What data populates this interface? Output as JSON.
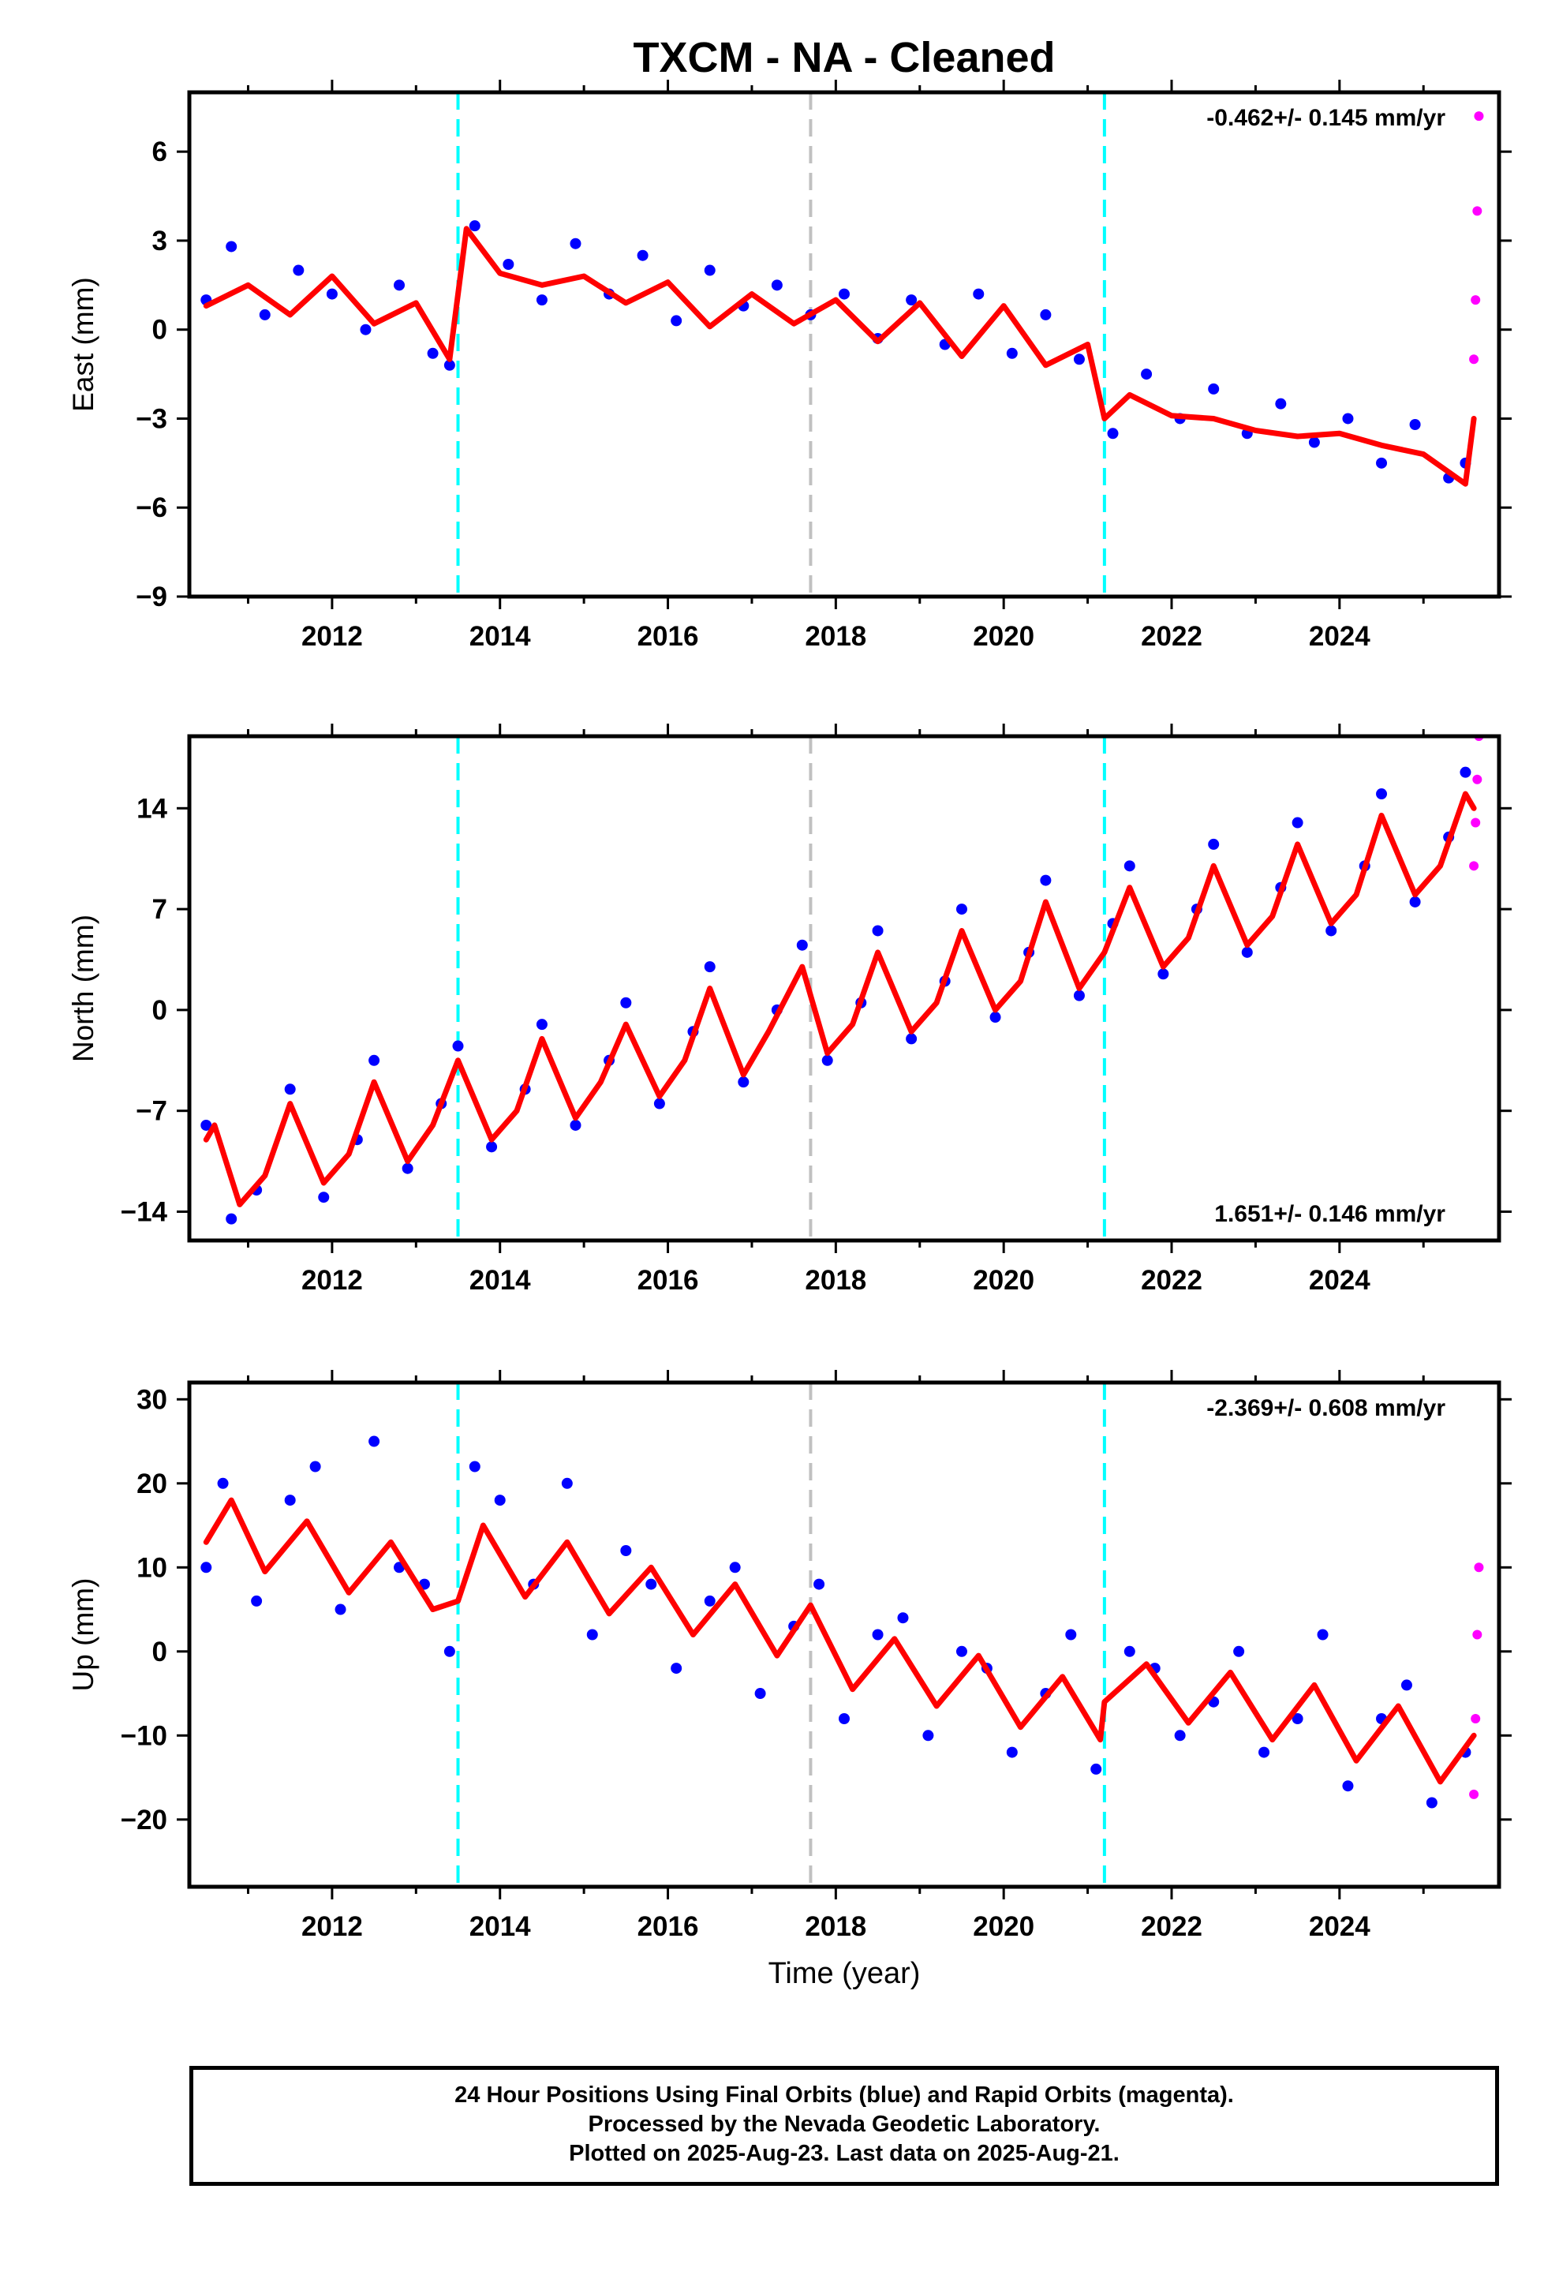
{
  "title": "TXCM  - NA - Cleaned",
  "footer": {
    "line1": "24 Hour Positions Using Final Orbits (blue) and Rapid Orbits (magenta).",
    "line2": "Processed by the Nevada Geodetic Laboratory.",
    "line3": "Plotted on 2025-Aug-23. Last data on 2025-Aug-21."
  },
  "colors": {
    "final": "#0000ff",
    "rapid": "#ff00ff",
    "model": "#ff0000",
    "equipment_change": "#00ffff",
    "earthquake": "#c0c0c0"
  },
  "chart_data": [
    {
      "type": "scatter",
      "component": "East",
      "ylabel": "East (mm)",
      "xlabel": "",
      "xlim": [
        2010.3,
        2025.9
      ],
      "ylim": [
        -9,
        8
      ],
      "yticks": [
        -9,
        -6,
        -3,
        0,
        3,
        6
      ],
      "ytick_labels": [
        "−9",
        "−6",
        "−3",
        "0",
        "3",
        "6"
      ],
      "xticks": [
        2012,
        2014,
        2016,
        2018,
        2020,
        2022,
        2024
      ],
      "rate_text": "-0.462+/- 0.145 mm/yr",
      "rate_position": "top-right",
      "vlines": [
        {
          "x": 2013.5,
          "style": "equipment_change"
        },
        {
          "x": 2017.7,
          "style": "earthquake"
        },
        {
          "x": 2021.2,
          "style": "equipment_change"
        }
      ],
      "model_fit": {
        "x": [
          2010.5,
          2011.0,
          2011.5,
          2012.0,
          2012.5,
          2013.0,
          2013.4,
          2013.6,
          2014.0,
          2014.5,
          2015.0,
          2015.5,
          2016.0,
          2016.5,
          2017.0,
          2017.5,
          2018.0,
          2018.5,
          2019.0,
          2019.5,
          2020.0,
          2020.5,
          2021.0,
          2021.2,
          2021.5,
          2022.0,
          2022.5,
          2023.0,
          2023.5,
          2024.0,
          2024.5,
          2025.0,
          2025.5,
          2025.6
        ],
        "y": [
          0.8,
          1.5,
          0.5,
          1.8,
          0.2,
          0.9,
          -1.0,
          3.4,
          1.9,
          1.5,
          1.8,
          0.9,
          1.6,
          0.1,
          1.2,
          0.2,
          1.0,
          -0.4,
          0.9,
          -0.9,
          0.8,
          -1.2,
          -0.5,
          -3.0,
          -2.2,
          -2.9,
          -3.0,
          -3.4,
          -3.6,
          -3.5,
          -3.9,
          -4.2,
          -5.2,
          -3.0
        ]
      },
      "final_orbits": {
        "x": [
          2010.5,
          2010.8,
          2011.2,
          2011.6,
          2012.0,
          2012.4,
          2012.8,
          2013.2,
          2013.4,
          2013.7,
          2014.1,
          2014.5,
          2014.9,
          2015.3,
          2015.7,
          2016.1,
          2016.5,
          2016.9,
          2017.3,
          2017.7,
          2018.1,
          2018.5,
          2018.9,
          2019.3,
          2019.7,
          2020.1,
          2020.5,
          2020.9,
          2021.3,
          2021.7,
          2022.1,
          2022.5,
          2022.9,
          2023.3,
          2023.7,
          2024.1,
          2024.5,
          2024.9,
          2025.3,
          2025.5
        ],
        "y": [
          1.0,
          2.8,
          0.5,
          2.0,
          1.2,
          0.0,
          1.5,
          -0.8,
          -1.2,
          3.5,
          2.2,
          1.0,
          2.9,
          1.2,
          2.5,
          0.3,
          2.0,
          0.8,
          1.5,
          0.5,
          1.2,
          -0.3,
          1.0,
          -0.5,
          1.2,
          -0.8,
          0.5,
          -1.0,
          -3.5,
          -1.5,
          -3.0,
          -2.0,
          -3.5,
          -2.5,
          -3.8,
          -3.0,
          -4.5,
          -3.2,
          -5.0,
          -4.5
        ]
      },
      "rapid_orbits": {
        "x": [
          2025.6,
          2025.62,
          2025.64,
          2025.66
        ],
        "y": [
          -1.0,
          1.0,
          4.0,
          7.2
        ]
      }
    },
    {
      "type": "scatter",
      "component": "North",
      "ylabel": "North (mm)",
      "xlabel": "",
      "xlim": [
        2010.3,
        2025.9
      ],
      "ylim": [
        -16,
        19
      ],
      "yticks": [
        -14,
        -7,
        0,
        7,
        14
      ],
      "ytick_labels": [
        "−14",
        "−7",
        "0",
        "7",
        "14"
      ],
      "xticks": [
        2012,
        2014,
        2016,
        2018,
        2020,
        2022,
        2024
      ],
      "rate_text": "1.651+/- 0.146 mm/yr",
      "rate_position": "bottom-right",
      "vlines": [
        {
          "x": 2013.5,
          "style": "equipment_change"
        },
        {
          "x": 2017.7,
          "style": "earthquake"
        },
        {
          "x": 2021.2,
          "style": "equipment_change"
        }
      ],
      "model_fit": {
        "x": [
          2010.5,
          2010.6,
          2010.9,
          2011.2,
          2011.5,
          2011.9,
          2012.2,
          2012.5,
          2012.9,
          2013.2,
          2013.5,
          2013.9,
          2014.2,
          2014.5,
          2014.9,
          2015.2,
          2015.5,
          2015.9,
          2016.2,
          2016.5,
          2016.9,
          2017.2,
          2017.6,
          2017.9,
          2018.2,
          2018.5,
          2018.9,
          2019.2,
          2019.5,
          2019.9,
          2020.2,
          2020.5,
          2020.9,
          2021.2,
          2021.5,
          2021.9,
          2022.2,
          2022.5,
          2022.9,
          2023.2,
          2023.5,
          2023.9,
          2024.2,
          2024.5,
          2024.9,
          2025.2,
          2025.5,
          2025.6
        ],
        "y": [
          -9.0,
          -8.0,
          -13.5,
          -11.5,
          -6.5,
          -12.0,
          -10.0,
          -5.0,
          -10.5,
          -8.0,
          -3.5,
          -9.0,
          -7.0,
          -2.0,
          -7.5,
          -5.0,
          -1.0,
          -6.0,
          -3.5,
          1.5,
          -4.5,
          -1.5,
          3.0,
          -3.0,
          -1.0,
          4.0,
          -1.5,
          0.5,
          5.5,
          0.0,
          2.0,
          7.5,
          1.5,
          4.0,
          8.5,
          3.0,
          5.0,
          10.0,
          4.5,
          6.5,
          11.5,
          6.0,
          8.0,
          13.5,
          8.0,
          10.0,
          15.0,
          14.0
        ]
      },
      "final_orbits": {
        "x": [
          2010.5,
          2010.8,
          2011.1,
          2011.5,
          2011.9,
          2012.3,
          2012.5,
          2012.9,
          2013.3,
          2013.5,
          2013.9,
          2014.3,
          2014.5,
          2014.9,
          2015.3,
          2015.5,
          2015.9,
          2016.3,
          2016.5,
          2016.9,
          2017.3,
          2017.6,
          2017.9,
          2018.3,
          2018.5,
          2018.9,
          2019.3,
          2019.5,
          2019.9,
          2020.3,
          2020.5,
          2020.9,
          2021.3,
          2021.5,
          2021.9,
          2022.3,
          2022.5,
          2022.9,
          2023.3,
          2023.5,
          2023.9,
          2024.3,
          2024.5,
          2024.9,
          2025.3,
          2025.5
        ],
        "y": [
          -8.0,
          -14.5,
          -12.5,
          -5.5,
          -13.0,
          -9.0,
          -3.5,
          -11.0,
          -6.5,
          -2.5,
          -9.5,
          -5.5,
          -1.0,
          -8.0,
          -3.5,
          0.5,
          -6.5,
          -1.5,
          3.0,
          -5.0,
          0.0,
          4.5,
          -3.5,
          0.5,
          5.5,
          -2.0,
          2.0,
          7.0,
          -0.5,
          4.0,
          9.0,
          1.0,
          6.0,
          10.0,
          2.5,
          7.0,
          11.5,
          4.0,
          8.5,
          13.0,
          5.5,
          10.0,
          15.0,
          7.5,
          12.0,
          16.5
        ]
      },
      "rapid_orbits": {
        "x": [
          2025.6,
          2025.62,
          2025.64,
          2025.66
        ],
        "y": [
          10.0,
          13.0,
          16.0,
          19.0
        ]
      }
    },
    {
      "type": "scatter",
      "component": "Up",
      "ylabel": "Up (mm)",
      "xlabel": "Time (year)",
      "xlim": [
        2010.3,
        2025.9
      ],
      "ylim": [
        -28,
        32
      ],
      "yticks": [
        -20,
        -10,
        0,
        10,
        20,
        30
      ],
      "ytick_labels": [
        "−20",
        "−10",
        "0",
        "10",
        "20",
        "30"
      ],
      "xticks": [
        2012,
        2014,
        2016,
        2018,
        2020,
        2022,
        2024
      ],
      "rate_text": "-2.369+/- 0.608 mm/yr",
      "rate_position": "top-right",
      "vlines": [
        {
          "x": 2013.5,
          "style": "equipment_change"
        },
        {
          "x": 2017.7,
          "style": "earthquake"
        },
        {
          "x": 2021.2,
          "style": "equipment_change"
        }
      ],
      "model_fit": {
        "x": [
          2010.5,
          2010.8,
          2011.2,
          2011.7,
          2012.2,
          2012.7,
          2013.2,
          2013.5,
          2013.8,
          2014.3,
          2014.8,
          2015.3,
          2015.8,
          2016.3,
          2016.8,
          2017.3,
          2017.7,
          2018.2,
          2018.7,
          2019.2,
          2019.7,
          2020.2,
          2020.7,
          2021.15,
          2021.2,
          2021.7,
          2022.2,
          2022.7,
          2023.2,
          2023.7,
          2024.2,
          2024.7,
          2025.2,
          2025.6
        ],
        "y": [
          13.0,
          18.0,
          9.5,
          15.5,
          7.0,
          13.0,
          5.0,
          6.0,
          15.0,
          6.5,
          13.0,
          4.5,
          10.0,
          2.0,
          8.0,
          -0.5,
          5.5,
          -4.5,
          1.5,
          -6.5,
          -0.5,
          -9.0,
          -3.0,
          -10.5,
          -6.0,
          -1.5,
          -8.5,
          -2.5,
          -10.5,
          -4.0,
          -13.0,
          -6.5,
          -15.5,
          -10.0
        ]
      },
      "final_orbits": {
        "x": [
          2010.5,
          2010.7,
          2011.1,
          2011.5,
          2011.8,
          2012.1,
          2012.5,
          2012.8,
          2013.1,
          2013.4,
          2013.7,
          2014.0,
          2014.4,
          2014.8,
          2015.1,
          2015.5,
          2015.8,
          2016.1,
          2016.5,
          2016.8,
          2017.1,
          2017.5,
          2017.8,
          2018.1,
          2018.5,
          2018.8,
          2019.1,
          2019.5,
          2019.8,
          2020.1,
          2020.5,
          2020.8,
          2021.1,
          2021.5,
          2021.8,
          2022.1,
          2022.5,
          2022.8,
          2023.1,
          2023.5,
          2023.8,
          2024.1,
          2024.5,
          2024.8,
          2025.1,
          2025.5
        ],
        "y": [
          10.0,
          20.0,
          6.0,
          18.0,
          22.0,
          5.0,
          25.0,
          10.0,
          8.0,
          0.0,
          22.0,
          18.0,
          8.0,
          20.0,
          2.0,
          12.0,
          8.0,
          -2.0,
          6.0,
          10.0,
          -5.0,
          3.0,
          8.0,
          -8.0,
          2.0,
          4.0,
          -10.0,
          0.0,
          -2.0,
          -12.0,
          -5.0,
          2.0,
          -14.0,
          0.0,
          -2.0,
          -10.0,
          -6.0,
          0.0,
          -12.0,
          -8.0,
          2.0,
          -16.0,
          -8.0,
          -4.0,
          -18.0,
          -12.0
        ]
      },
      "rapid_orbits": {
        "x": [
          2025.6,
          2025.62,
          2025.64,
          2025.66
        ],
        "y": [
          -17.0,
          -8.0,
          2.0,
          10.0
        ]
      }
    }
  ]
}
